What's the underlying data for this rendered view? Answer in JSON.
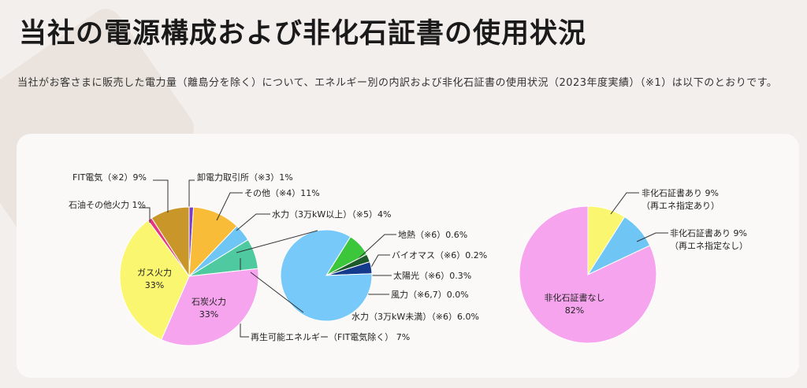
{
  "page": {
    "title": "当社の電源構成および非化石証書の使用状況",
    "description": "当社がお客さまに販売した電力量（離島分を除く）について、エネルギー別の内訳および非化石証書の使用状況（2023年度実績）（※1）は以下のとおりです。"
  },
  "chart_data": [
    {
      "type": "pie",
      "slices": [
        {
          "label": "卸電力取引所（※3）1%",
          "value": 1,
          "color": "#7a3cc8"
        },
        {
          "label": "その他（※4）11%",
          "value": 11,
          "color": "#f9bc38"
        },
        {
          "label": "水力（3万kW以上）（※5）4%",
          "value": 4,
          "color": "#6fc6f4"
        },
        {
          "label": "再生可能エネルギー（FIT電気除く） 7%",
          "value": 7,
          "color": "#4ec9a0"
        },
        {
          "label": "石炭火力\n33%",
          "value": 33,
          "color": "#f6a4ee"
        },
        {
          "label": "ガス火力\n33%",
          "value": 33,
          "color": "#fbf66f"
        },
        {
          "label": "石油その他火力 1%",
          "value": 1,
          "color": "#e8357d"
        },
        {
          "label": "FIT電気（※2）9%",
          "value": 9,
          "color": "#c9962a"
        }
      ]
    },
    {
      "type": "pie",
      "slices": [
        {
          "label": "地熱（※6）0.6%",
          "value": 0.6,
          "color": "#3cc63c"
        },
        {
          "label": "バイオマス（※6）0.2%",
          "value": 0.2,
          "color": "#1c5a2a"
        },
        {
          "label": "太陽光（※6）0.3%",
          "value": 0.3,
          "color": "#143a8c"
        },
        {
          "label": "風力（※6,7）0.0%",
          "value": 0.0,
          "color": "#f3ee55"
        },
        {
          "label": "水力（3万kW未満）（※6）6.0%",
          "value": 6.0,
          "color": "#76c9f8"
        }
      ]
    },
    {
      "type": "pie",
      "slices": [
        {
          "label": "非化石証書あり 9%\n（再エネ指定あり）",
          "value": 9,
          "color": "#fbf66f"
        },
        {
          "label": "非化石証書あり 9%\n（再エネ指定なし）",
          "value": 9,
          "color": "#6fc6f4"
        },
        {
          "label": "非化石証書なし\n82%",
          "value": 82,
          "color": "#f6a4ee"
        }
      ]
    }
  ]
}
